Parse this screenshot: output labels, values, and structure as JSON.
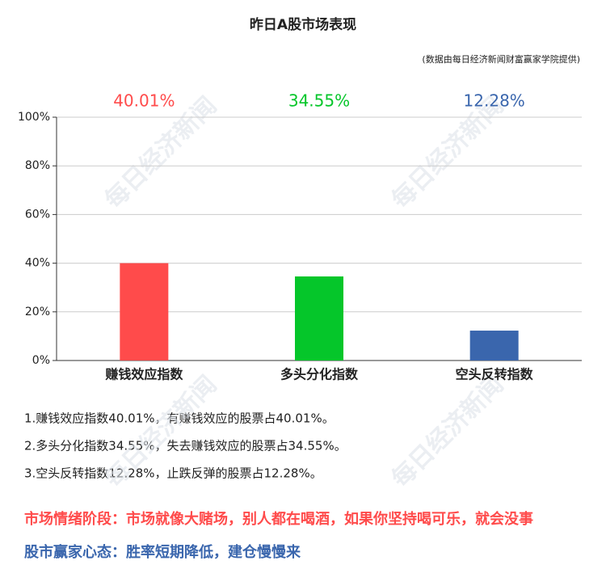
{
  "chart_data": {
    "type": "bar",
    "title": "昨日A股市场表现",
    "subtitle": "(数据由每日经济新闻财富赢家学院提供)",
    "categories": [
      "赚钱效应指数",
      "多头分化指数",
      "空头反转指数"
    ],
    "values": [
      40.01,
      34.55,
      12.28
    ],
    "value_labels": [
      "40.01%",
      "34.55%",
      "12.28%"
    ],
    "colors": [
      "#ff4b4b",
      "#05c62a",
      "#3a66ad"
    ],
    "ylim": [
      0,
      100
    ],
    "yticks": [
      {
        "value": 0,
        "label": "0%"
      },
      {
        "value": 20,
        "label": "20%"
      },
      {
        "value": 40,
        "label": "40%"
      },
      {
        "value": 60,
        "label": "60%"
      },
      {
        "value": 80,
        "label": "80%"
      },
      {
        "value": 100,
        "label": "100%"
      }
    ],
    "grid": true
  },
  "watermark": "每日经济新闻",
  "notes": [
    "1.赚钱效应指数40.01%，有赚钱效应的股票占40.01%。",
    "2.多头分化指数34.55%，失去赚钱效应的股票占34.55%。",
    "3.空头反转指数12.28%，止跌反弹的股票占12.28%。"
  ],
  "sentiment": "市场情绪阶段：市场就像大赌场，别人都在喝酒，如果你坚持喝可乐，就会没事",
  "mindset": "股市赢家心态：胜率短期降低，建仓慢慢来"
}
